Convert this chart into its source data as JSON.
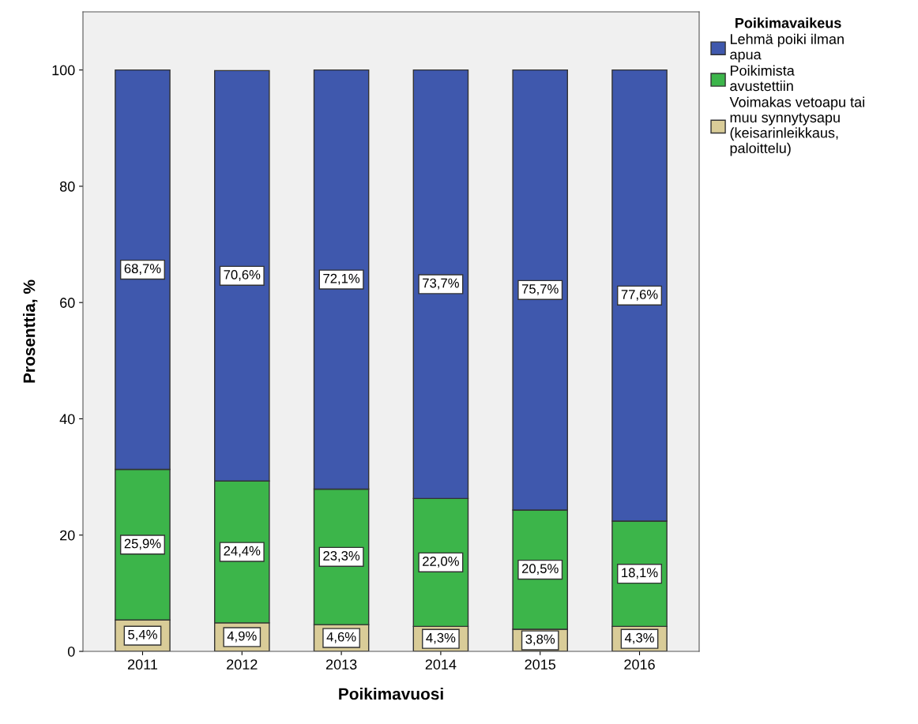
{
  "chart_data": {
    "type": "bar",
    "stacked": true,
    "xlabel": "Poikimavuosi",
    "ylabel": "Prosenttia, %",
    "legend_title": "Poikimavaikeus",
    "legend": "top right",
    "grid": false,
    "categories": [
      "2011",
      "2012",
      "2013",
      "2014",
      "2015",
      "2016"
    ],
    "ylim": [
      0,
      110
    ],
    "yticks": [
      0,
      20,
      40,
      60,
      80,
      100
    ],
    "series": [
      {
        "name": "Voimakas vetoapu tai muu synnytysapu (keisarinleikkaus, paloittelu)",
        "color": "#d9cc98",
        "values": [
          5.4,
          4.9,
          4.6,
          4.3,
          3.8,
          4.3
        ],
        "value_labels": [
          "5,4%",
          "4,9%",
          "4,6%",
          "4,3%",
          "3,8%",
          "4,3%"
        ]
      },
      {
        "name": "Poikimista avustettiin",
        "color": "#3cb54a",
        "values": [
          25.9,
          24.4,
          23.3,
          22.0,
          20.5,
          18.1
        ],
        "value_labels": [
          "25,9%",
          "24,4%",
          "23,3%",
          "22,0%",
          "20,5%",
          "18,1%"
        ]
      },
      {
        "name": "Lehmä poiki ilman apua",
        "color": "#3f58ad",
        "values": [
          68.7,
          70.6,
          72.1,
          73.7,
          75.7,
          77.6
        ],
        "value_labels": [
          "68,7%",
          "70,6%",
          "72,1%",
          "73,7%",
          "75,7%",
          "77,6%"
        ]
      }
    ]
  }
}
